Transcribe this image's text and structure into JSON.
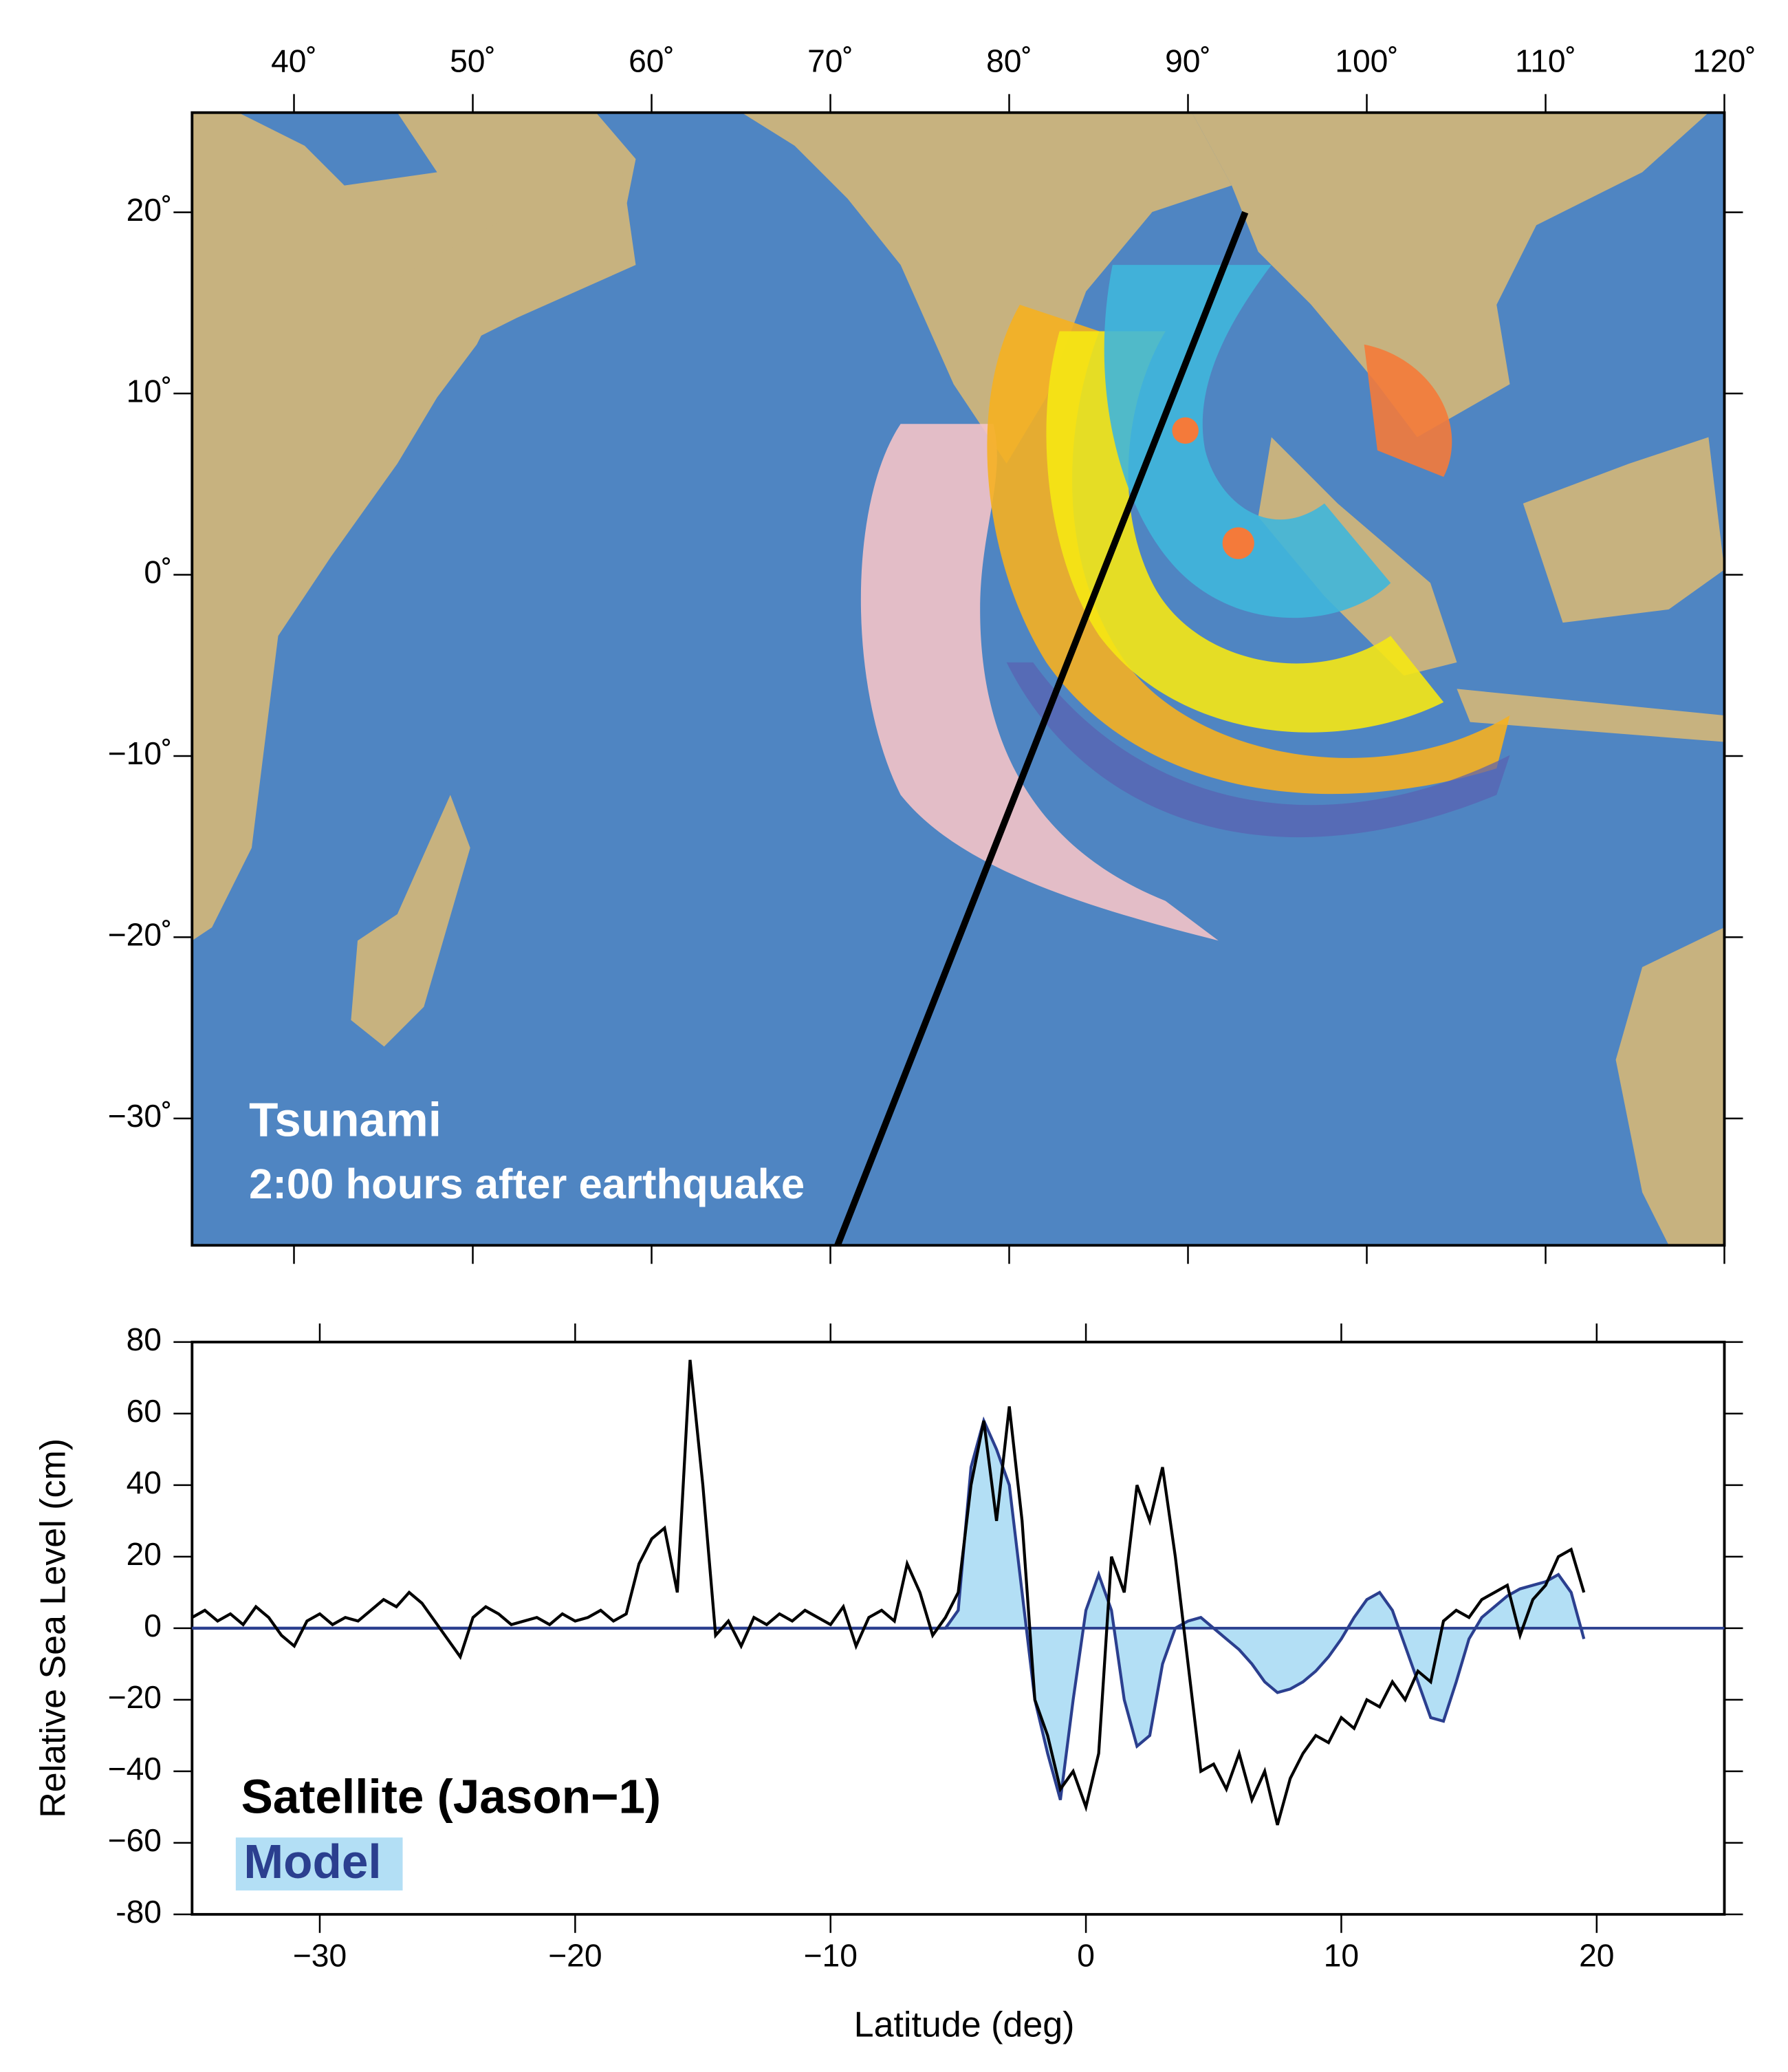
{
  "chart_data": [
    {
      "type": "map",
      "annotations": [
        "Tsunami",
        "2:00 hours after earthquake"
      ],
      "xlim": [
        34.3,
        120
      ],
      "ylim": [
        -37,
        25.5
      ],
      "xticks": [
        {
          "value": 40,
          "label": "40˚"
        },
        {
          "value": 50,
          "label": "50˚"
        },
        {
          "value": 60,
          "label": "60˚"
        },
        {
          "value": 70,
          "label": "70˚"
        },
        {
          "value": 80,
          "label": "80˚"
        },
        {
          "value": 90,
          "label": "90˚"
        },
        {
          "value": 100,
          "label": "100˚"
        },
        {
          "value": 110,
          "label": "110˚"
        },
        {
          "value": 120,
          "label": "120˚"
        }
      ],
      "yticks": [
        {
          "value": 20,
          "label": "20˚"
        },
        {
          "value": 10,
          "label": "10˚"
        },
        {
          "value": 0,
          "label": "0˚"
        },
        {
          "value": -10,
          "label": "−10˚"
        },
        {
          "value": -20,
          "label": "−20˚"
        },
        {
          "value": -30,
          "label": "−30˚"
        }
      ],
      "track": {
        "x": [
          70.4,
          93.2
        ],
        "y": [
          -37,
          20
        ],
        "color": "#000000"
      }
    },
    {
      "type": "line",
      "xlabel": "Latitude (deg)",
      "ylabel": "Relative Sea Level (cm)",
      "xlim": [
        -35,
        25
      ],
      "ylim": [
        -80,
        80
      ],
      "xticks": [
        {
          "value": -30,
          "label": "−30"
        },
        {
          "value": -20,
          "label": "−20"
        },
        {
          "value": -10,
          "label": "−10"
        },
        0,
        10,
        20
      ],
      "yticks": [
        {
          "value": -80,
          "label": "-80"
        },
        {
          "value": -60,
          "label": "−60"
        },
        {
          "value": -40,
          "label": "−40"
        },
        {
          "value": -20,
          "label": "−20"
        },
        0,
        20,
        40,
        60,
        80
      ],
      "x": [
        -35,
        -34.5,
        -34,
        -33.5,
        -33,
        -32.5,
        -32,
        -31.5,
        -31,
        -30.5,
        -30,
        -29.5,
        -29,
        -28.5,
        -28,
        -27.5,
        -27,
        -26.5,
        -26,
        -25.5,
        -25,
        -24.5,
        -24,
        -23.5,
        -23,
        -22.5,
        -22,
        -21.5,
        -21,
        -20.5,
        -20,
        -19.5,
        -19,
        -18.5,
        -18,
        -17.5,
        -17,
        -16.5,
        -16,
        -15.5,
        -15,
        -14.5,
        -14,
        -13.5,
        -13,
        -12.5,
        -12,
        -11.5,
        -11,
        -10.5,
        -10,
        -9.5,
        -9,
        -8.5,
        -8,
        -7.5,
        -7,
        -6.5,
        -6,
        -5.5,
        -5,
        -4.5,
        -4,
        -3.5,
        -3,
        -2.5,
        -2,
        -1.5,
        -1,
        -0.5,
        0,
        0.5,
        1,
        1.5,
        2,
        2.5,
        3,
        3.5,
        4,
        4.5,
        5,
        5.5,
        6,
        6.5,
        7,
        7.5,
        8,
        8.5,
        9,
        9.5,
        10,
        10.5,
        11,
        11.5,
        12,
        12.5,
        13,
        13.5,
        14,
        14.5,
        15,
        15.5,
        16,
        16.5,
        17,
        17.5,
        18,
        18.5,
        19,
        19.5
      ],
      "series": [
        {
          "name": "Satellite (Jason−1)",
          "color": "#000000",
          "values": [
            3,
            5,
            2,
            4,
            1,
            6,
            3,
            -2,
            -5,
            2,
            4,
            1,
            3,
            2,
            5,
            8,
            6,
            10,
            7,
            2,
            -3,
            -8,
            3,
            6,
            4,
            1,
            2,
            3,
            1,
            4,
            2,
            3,
            5,
            2,
            4,
            18,
            25,
            28,
            10,
            75,
            40,
            -2,
            2,
            -5,
            3,
            1,
            4,
            2,
            5,
            3,
            1,
            6,
            -5,
            3,
            5,
            2,
            18,
            10,
            -2,
            3,
            10,
            40,
            58,
            30,
            62,
            30,
            -20,
            -30,
            -45,
            -40,
            -50,
            -35,
            20,
            10,
            40,
            30,
            45,
            20,
            -10,
            -40,
            -38,
            -45,
            -35,
            -48,
            -40,
            -55,
            -42,
            -35,
            -30,
            -32,
            -25,
            -28,
            -20,
            -22,
            -15,
            -20,
            -12,
            -15,
            2,
            5,
            3,
            8,
            10,
            12,
            -2,
            8,
            12,
            20,
            22,
            10
          ]
        },
        {
          "name": "Model",
          "color": "#2b3f8f",
          "fill": "#b3dff5",
          "values": [
            0,
            0,
            0,
            0,
            0,
            0,
            0,
            0,
            0,
            0,
            0,
            0,
            0,
            0,
            0,
            0,
            0,
            0,
            0,
            0,
            0,
            0,
            0,
            0,
            0,
            0,
            0,
            0,
            0,
            0,
            0,
            0,
            0,
            0,
            0,
            0,
            0,
            0,
            0,
            0,
            0,
            0,
            0,
            0,
            0,
            0,
            0,
            0,
            0,
            0,
            0,
            0,
            0,
            0,
            0,
            0,
            0,
            0,
            0,
            0,
            5,
            45,
            58,
            50,
            40,
            10,
            -20,
            -35,
            -48,
            -20,
            5,
            15,
            5,
            -20,
            -33,
            -30,
            -10,
            0,
            2,
            3,
            0,
            -3,
            -6,
            -10,
            -15,
            -18,
            -17,
            -15,
            -12,
            -8,
            -3,
            3,
            8,
            10,
            5,
            -5,
            -15,
            -25,
            -26,
            -15,
            -3,
            3,
            6,
            9,
            11,
            12,
            13,
            15,
            10,
            -3
          ]
        }
      ]
    }
  ]
}
